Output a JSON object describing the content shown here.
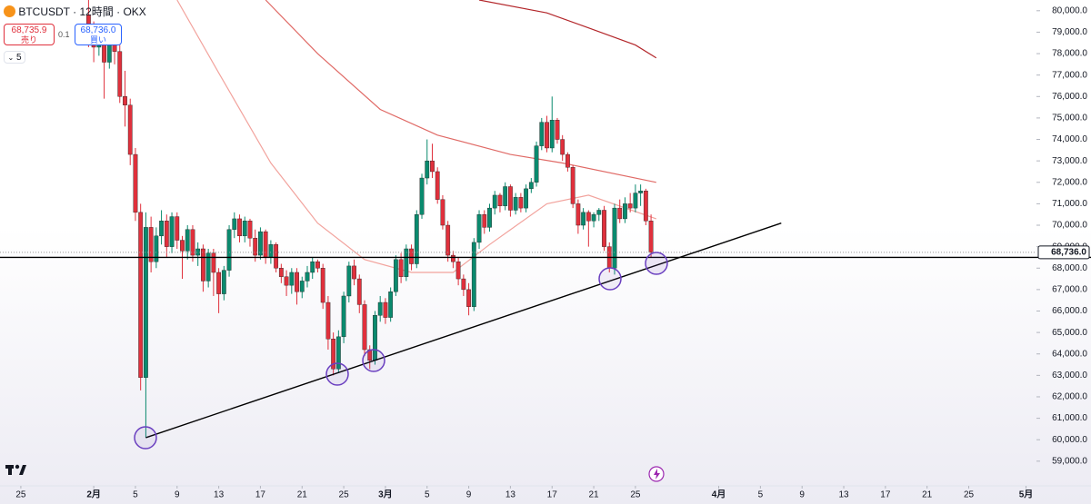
{
  "chart_data": {
    "type": "candlestick",
    "title": "BTCUSDT · 12時間 · OKX",
    "quote": {
      "sell": {
        "price": {
          "value": 68735.9,
          "label": "68,735.9"
        },
        "label": "売り"
      },
      "spread": 0.1,
      "buy": {
        "price": {
          "value": 68736,
          "label": "68,736.0"
        },
        "label": "買い"
      },
      "collapsed_count": 5
    },
    "up_color": "#0a8a6e",
    "down_color": "#e0303c",
    "candles": [
      [
        79800,
        80600,
        78300,
        79000
      ],
      [
        79000,
        79500,
        77600,
        78300
      ],
      [
        78300,
        79300,
        77900,
        78800
      ],
      [
        78800,
        79100,
        75900,
        77600
      ],
      [
        77600,
        79400,
        77300,
        78900
      ],
      [
        78900,
        79300,
        77500,
        78100
      ],
      [
        78100,
        78400,
        75700,
        76000
      ],
      [
        76000,
        77200,
        74600,
        75600
      ],
      [
        75600,
        75900,
        72800,
        73300
      ],
      [
        73300,
        73600,
        70200,
        70600
      ],
      [
        70600,
        71000,
        62300,
        62900
      ],
      [
        62900,
        70600,
        60100,
        69900
      ],
      [
        69900,
        70400,
        67800,
        68300
      ],
      [
        68300,
        69900,
        68000,
        69500
      ],
      [
        69500,
        70700,
        69100,
        70200
      ],
      [
        70200,
        70500,
        68500,
        69000
      ],
      [
        69000,
        70600,
        68700,
        70400
      ],
      [
        70400,
        70600,
        68900,
        69300
      ],
      [
        69300,
        69500,
        67500,
        68800
      ],
      [
        68800,
        70000,
        68400,
        69800
      ],
      [
        69800,
        70000,
        68300,
        68600
      ],
      [
        68600,
        69200,
        68100,
        68900
      ],
      [
        68900,
        69100,
        66900,
        67400
      ],
      [
        67400,
        68900,
        67100,
        68700
      ],
      [
        68700,
        68900,
        66700,
        67800
      ],
      [
        67800,
        68000,
        65900,
        66800
      ],
      [
        66800,
        68100,
        66500,
        67900
      ],
      [
        67900,
        70000,
        67600,
        69800
      ],
      [
        69800,
        70600,
        69400,
        70300
      ],
      [
        70300,
        70500,
        69200,
        69500
      ],
      [
        69500,
        70400,
        69200,
        70200
      ],
      [
        70200,
        70300,
        69000,
        69400
      ],
      [
        69400,
        69800,
        68300,
        68600
      ],
      [
        68600,
        69900,
        68400,
        69700
      ],
      [
        69700,
        69800,
        68200,
        68500
      ],
      [
        68500,
        69300,
        68200,
        69100
      ],
      [
        69100,
        69200,
        67800,
        68000
      ],
      [
        68000,
        68200,
        67300,
        67600
      ],
      [
        67600,
        67900,
        66700,
        67200
      ],
      [
        67200,
        68000,
        66800,
        67800
      ],
      [
        67800,
        68000,
        66300,
        66900
      ],
      [
        66900,
        67600,
        66600,
        67400
      ],
      [
        67400,
        68100,
        67100,
        67800
      ],
      [
        67800,
        68500,
        67500,
        68300
      ],
      [
        68300,
        68400,
        67800,
        68000
      ],
      [
        68000,
        68200,
        66100,
        66400
      ],
      [
        66400,
        66700,
        64200,
        64700
      ],
      [
        64700,
        65000,
        63000,
        63300
      ],
      [
        63300,
        65100,
        63100,
        64800
      ],
      [
        64800,
        66900,
        64500,
        66700
      ],
      [
        66700,
        68300,
        66400,
        68100
      ],
      [
        68100,
        68400,
        67200,
        67500
      ],
      [
        67500,
        67700,
        65900,
        66300
      ],
      [
        66300,
        66500,
        63900,
        64200
      ],
      [
        64200,
        64400,
        63300,
        63700
      ],
      [
        63700,
        66000,
        63500,
        65800
      ],
      [
        65800,
        66700,
        65500,
        66400
      ],
      [
        66400,
        66600,
        65400,
        65700
      ],
      [
        65700,
        67100,
        65500,
        66900
      ],
      [
        66900,
        68600,
        66700,
        68400
      ],
      [
        68400,
        68700,
        67300,
        67600
      ],
      [
        67600,
        69100,
        67400,
        68900
      ],
      [
        68900,
        69100,
        67900,
        68200
      ],
      [
        68200,
        70700,
        68000,
        70500
      ],
      [
        70500,
        72400,
        70300,
        72200
      ],
      [
        72200,
        74000,
        71900,
        73000
      ],
      [
        73000,
        73800,
        72200,
        72500
      ],
      [
        72500,
        72700,
        71000,
        71200
      ],
      [
        71200,
        71400,
        69800,
        70000
      ],
      [
        70000,
        70200,
        68300,
        68600
      ],
      [
        68600,
        68800,
        68000,
        68300
      ],
      [
        68300,
        68500,
        67200,
        67500
      ],
      [
        67500,
        67700,
        66700,
        67000
      ],
      [
        67000,
        67300,
        65800,
        66200
      ],
      [
        66200,
        69400,
        66000,
        69200
      ],
      [
        69200,
        70700,
        68900,
        70500
      ],
      [
        70500,
        70700,
        69600,
        69900
      ],
      [
        69900,
        71000,
        69700,
        70800
      ],
      [
        70800,
        71600,
        70500,
        71400
      ],
      [
        71400,
        71500,
        70600,
        70900
      ],
      [
        70900,
        72000,
        70700,
        71800
      ],
      [
        71800,
        71900,
        70400,
        70700
      ],
      [
        70700,
        71500,
        70500,
        71300
      ],
      [
        71300,
        71500,
        70600,
        70800
      ],
      [
        70800,
        71900,
        70600,
        71700
      ],
      [
        71700,
        72200,
        71500,
        72000
      ],
      [
        72000,
        73900,
        71800,
        73700
      ],
      [
        73700,
        75000,
        73500,
        74800
      ],
      [
        74800,
        75100,
        73400,
        73600
      ],
      [
        73600,
        76000,
        73400,
        74900
      ],
      [
        74900,
        75000,
        73800,
        74000
      ],
      [
        74000,
        74200,
        73000,
        73300
      ],
      [
        73300,
        73400,
        72500,
        72700
      ],
      [
        72700,
        72800,
        70800,
        71000
      ],
      [
        71000,
        71200,
        69600,
        70000
      ],
      [
        70000,
        70800,
        69800,
        70600
      ],
      [
        70600,
        70700,
        69000,
        70200
      ],
      [
        70200,
        70600,
        69900,
        70500
      ],
      [
        70500,
        70800,
        70200,
        70700
      ],
      [
        70700,
        70900,
        68800,
        69000
      ],
      [
        69000,
        69200,
        67800,
        68000
      ],
      [
        68000,
        71000,
        67700,
        70800
      ],
      [
        70800,
        71200,
        70100,
        70300
      ],
      [
        70300,
        71300,
        70100,
        71000
      ],
      [
        71000,
        71500,
        70600,
        70800
      ],
      [
        70800,
        71900,
        70600,
        71500
      ],
      [
        71500,
        71900,
        70900,
        71600
      ],
      [
        71600,
        71700,
        70000,
        70200
      ],
      [
        70200,
        70500,
        68500,
        68736
      ]
    ],
    "series": [
      {
        "color": "#b3262a",
        "x": [
          75,
          88,
          96,
          105,
          109
        ],
        "values": [
          80500,
          79900,
          79200,
          78400,
          77800
        ]
      },
      {
        "color": "#e06a66",
        "x": [
          34,
          44,
          56,
          67,
          81,
          91,
          109
        ],
        "values": [
          80500,
          78000,
          75400,
          74200,
          73300,
          72900,
          72000
        ]
      },
      {
        "color": "#f2a39d",
        "x": [
          17,
          25,
          35,
          44,
          53,
          62,
          70,
          77,
          88,
          96,
          109
        ],
        "values": [
          80500,
          77100,
          72900,
          70100,
          68400,
          67800,
          67800,
          69100,
          71000,
          71400,
          70300
        ]
      }
    ],
    "trendline": {
      "x": [
        11,
        133
      ],
      "values": [
        60100,
        70100
      ]
    },
    "hline": 68500,
    "last_price": {
      "value": 68736,
      "label": "68,736.0"
    },
    "xlim": [
      -17,
      182
    ],
    "ylim": [
      57850,
      80500
    ],
    "xticks": [
      {
        "value": -13,
        "label": "25"
      },
      {
        "value": 1,
        "label": "2月"
      },
      {
        "value": 9,
        "label": "5"
      },
      {
        "value": 17,
        "label": "9"
      },
      {
        "value": 25,
        "label": "13"
      },
      {
        "value": 33,
        "label": "17"
      },
      {
        "value": 41,
        "label": "21"
      },
      {
        "value": 49,
        "label": "25"
      },
      {
        "value": 57,
        "label": "3月"
      },
      {
        "value": 65,
        "label": "5"
      },
      {
        "value": 73,
        "label": "9"
      },
      {
        "value": 81,
        "label": "13"
      },
      {
        "value": 89,
        "label": "17"
      },
      {
        "value": 97,
        "label": "21"
      },
      {
        "value": 105,
        "label": "25"
      },
      {
        "value": 121,
        "label": "4月"
      },
      {
        "value": 129,
        "label": "5"
      },
      {
        "value": 137,
        "label": "9"
      },
      {
        "value": 145,
        "label": "13"
      },
      {
        "value": 153,
        "label": "17"
      },
      {
        "value": 161,
        "label": "21"
      },
      {
        "value": 169,
        "label": "25"
      },
      {
        "value": 180,
        "label": "5月"
      }
    ],
    "yticks": [
      {
        "value": 80000,
        "label": "80,000.0"
      },
      {
        "value": 79000,
        "label": "79,000.0"
      },
      {
        "value": 78000,
        "label": "78,000.0"
      },
      {
        "value": 77000,
        "label": "77,000.0"
      },
      {
        "value": 76000,
        "label": "76,000.0"
      },
      {
        "value": 75000,
        "label": "75,000.0"
      },
      {
        "value": 74000,
        "label": "74,000.0"
      },
      {
        "value": 73000,
        "label": "73,000.0"
      },
      {
        "value": 72000,
        "label": "72,000.0"
      },
      {
        "value": 71000,
        "label": "71,000.0"
      },
      {
        "value": 70000,
        "label": "70,000.0"
      },
      {
        "value": 69000,
        "label": "69,000.0"
      },
      {
        "value": 68000,
        "label": "68,000.0"
      },
      {
        "value": 67000,
        "label": "67,000.0"
      },
      {
        "value": 66000,
        "label": "66,000.0"
      },
      {
        "value": 65000,
        "label": "65,000.0"
      },
      {
        "value": 64000,
        "label": "64,000.0"
      },
      {
        "value": 63000,
        "label": "63,000.0"
      },
      {
        "value": 62000,
        "label": "62,000.0"
      },
      {
        "value": 61000,
        "label": "61,000.0"
      },
      {
        "value": 60000,
        "label": "60,000.0"
      },
      {
        "value": 59000,
        "label": "59,000.0"
      }
    ]
  }
}
